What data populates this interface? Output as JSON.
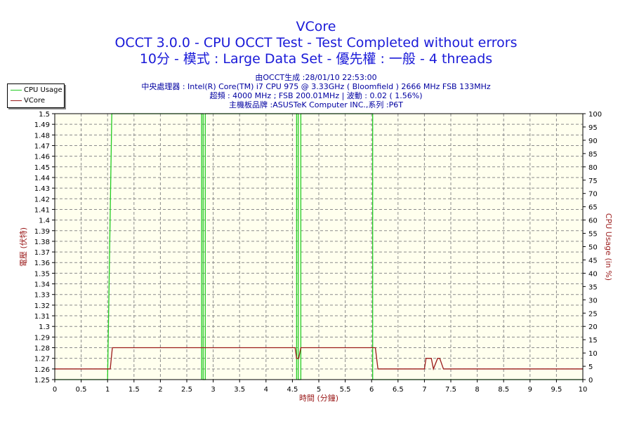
{
  "header": {
    "title": "VCore",
    "line2": "OCCT 3.0.0 - CPU OCCT Test - Test Completed without errors",
    "line3": "10分 - 模式 : Large Data Set - 優先權 : 一般 - 4 threads",
    "info1": "由OCCT生成 :28/01/10 22:53:00",
    "info2": "中央處理器 : Intel(R) Core(TM) i7 CPU 975 @ 3.33GHz ( Bloomfield ) 2666 MHz FSB 133MHz",
    "info3": "超頻 : 4000 MHz ; FSB 200.01MHz | 波動 : 0.02 ( 1.56%)",
    "info4": "主機板品牌 :ASUSTeK Computer INC.,系列 :P6T"
  },
  "colors": {
    "cpu_usage": "#22cc22",
    "vcore": "#9b1b1b",
    "plot_bg": "#ffffee",
    "grid": "#8a8a8a",
    "title": "#1a1ad8",
    "axis_label": "#9b1b1b"
  },
  "chart_data": {
    "type": "line",
    "xlabel": "時間 (分鐘)",
    "ylabel": "電壓 (伏特)",
    "y2label": "CPU Usage (in %)",
    "xlim": [
      0,
      10
    ],
    "ylim": [
      1.25,
      1.5
    ],
    "y2lim": [
      0,
      100
    ],
    "grid": true,
    "legend": "top-left",
    "x_ticks": [
      "0",
      "0.5",
      "1",
      "1.5",
      "2",
      "2.5",
      "3",
      "3.5",
      "4",
      "4.5",
      "5",
      "5.5",
      "6",
      "6.5",
      "7",
      "7.5",
      "8",
      "8.5",
      "9",
      "9.5",
      "10"
    ],
    "y_ticks": [
      "1.25",
      "1.26",
      "1.27",
      "1.28",
      "1.29",
      "1.3",
      "1.31",
      "1.32",
      "1.33",
      "1.34",
      "1.35",
      "1.36",
      "1.37",
      "1.38",
      "1.39",
      "1.4",
      "1.41",
      "1.42",
      "1.43",
      "1.44",
      "1.45",
      "1.46",
      "1.47",
      "1.48",
      "1.49",
      "1.5"
    ],
    "y2_ticks": [
      "0",
      "5",
      "10",
      "15",
      "20",
      "25",
      "30",
      "35",
      "40",
      "45",
      "50",
      "55",
      "60",
      "65",
      "70",
      "75",
      "80",
      "85",
      "90",
      "95",
      "100"
    ],
    "series": [
      {
        "name": "CPU Usage",
        "axis": "right",
        "x": [
          0,
          1.0,
          1.08,
          2.78,
          2.78,
          2.78,
          2.81,
          2.81,
          2.85,
          2.85,
          2.85,
          4.58,
          4.58,
          4.58,
          4.61,
          4.61,
          4.66,
          4.66,
          4.66,
          6.02,
          6.02,
          6.07,
          10
        ],
        "y": [
          0,
          0,
          100,
          100,
          0,
          100,
          100,
          0,
          0,
          100,
          100,
          100,
          0,
          100,
          100,
          0,
          0,
          100,
          100,
          100,
          0,
          0,
          0
        ]
      },
      {
        "name": "VCore",
        "axis": "left",
        "x": [
          0,
          1.0,
          1.05,
          1.09,
          4.55,
          4.58,
          4.62,
          4.66,
          6.07,
          6.12,
          7.0,
          7.03,
          7.13,
          7.17,
          7.25,
          7.29,
          7.36,
          7.39,
          10
        ],
        "y": [
          1.26,
          1.26,
          1.26,
          1.28,
          1.28,
          1.27,
          1.27,
          1.28,
          1.28,
          1.26,
          1.26,
          1.27,
          1.27,
          1.26,
          1.27,
          1.27,
          1.26,
          1.26,
          1.26
        ]
      }
    ]
  }
}
